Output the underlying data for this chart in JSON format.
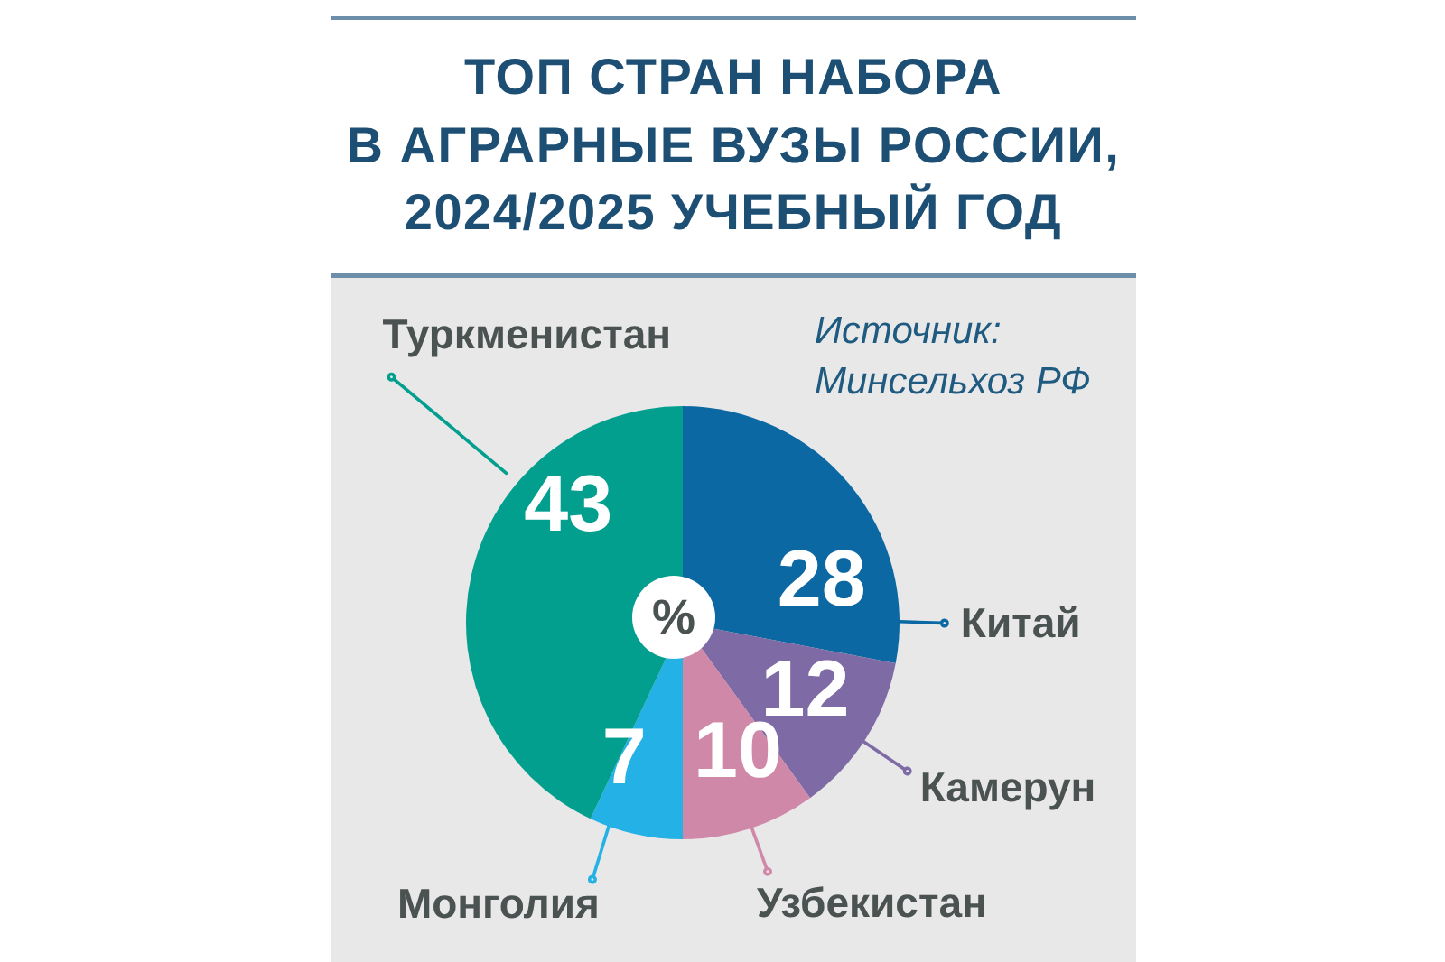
{
  "chart_data": {
    "type": "pie",
    "title": "ТОП СТРАН НАБОРА\nВ АГРАРНЫЕ ВУЗЫ РОССИИ,\n2024/2025 УЧЕБНЫЙ ГОД",
    "categories": [
      "Китай",
      "Камерун",
      "Узбекистан",
      "Монголия",
      "Туркменистан"
    ],
    "values": [
      28,
      12,
      10,
      7,
      43
    ],
    "colors": [
      "#0b68a2",
      "#7e6aa4",
      "#d088a9",
      "#23b1e6",
      "#029e8e"
    ],
    "data_labels": true,
    "annotations": [
      "Источник:\nМинсельхоз РФ",
      "%"
    ]
  }
}
